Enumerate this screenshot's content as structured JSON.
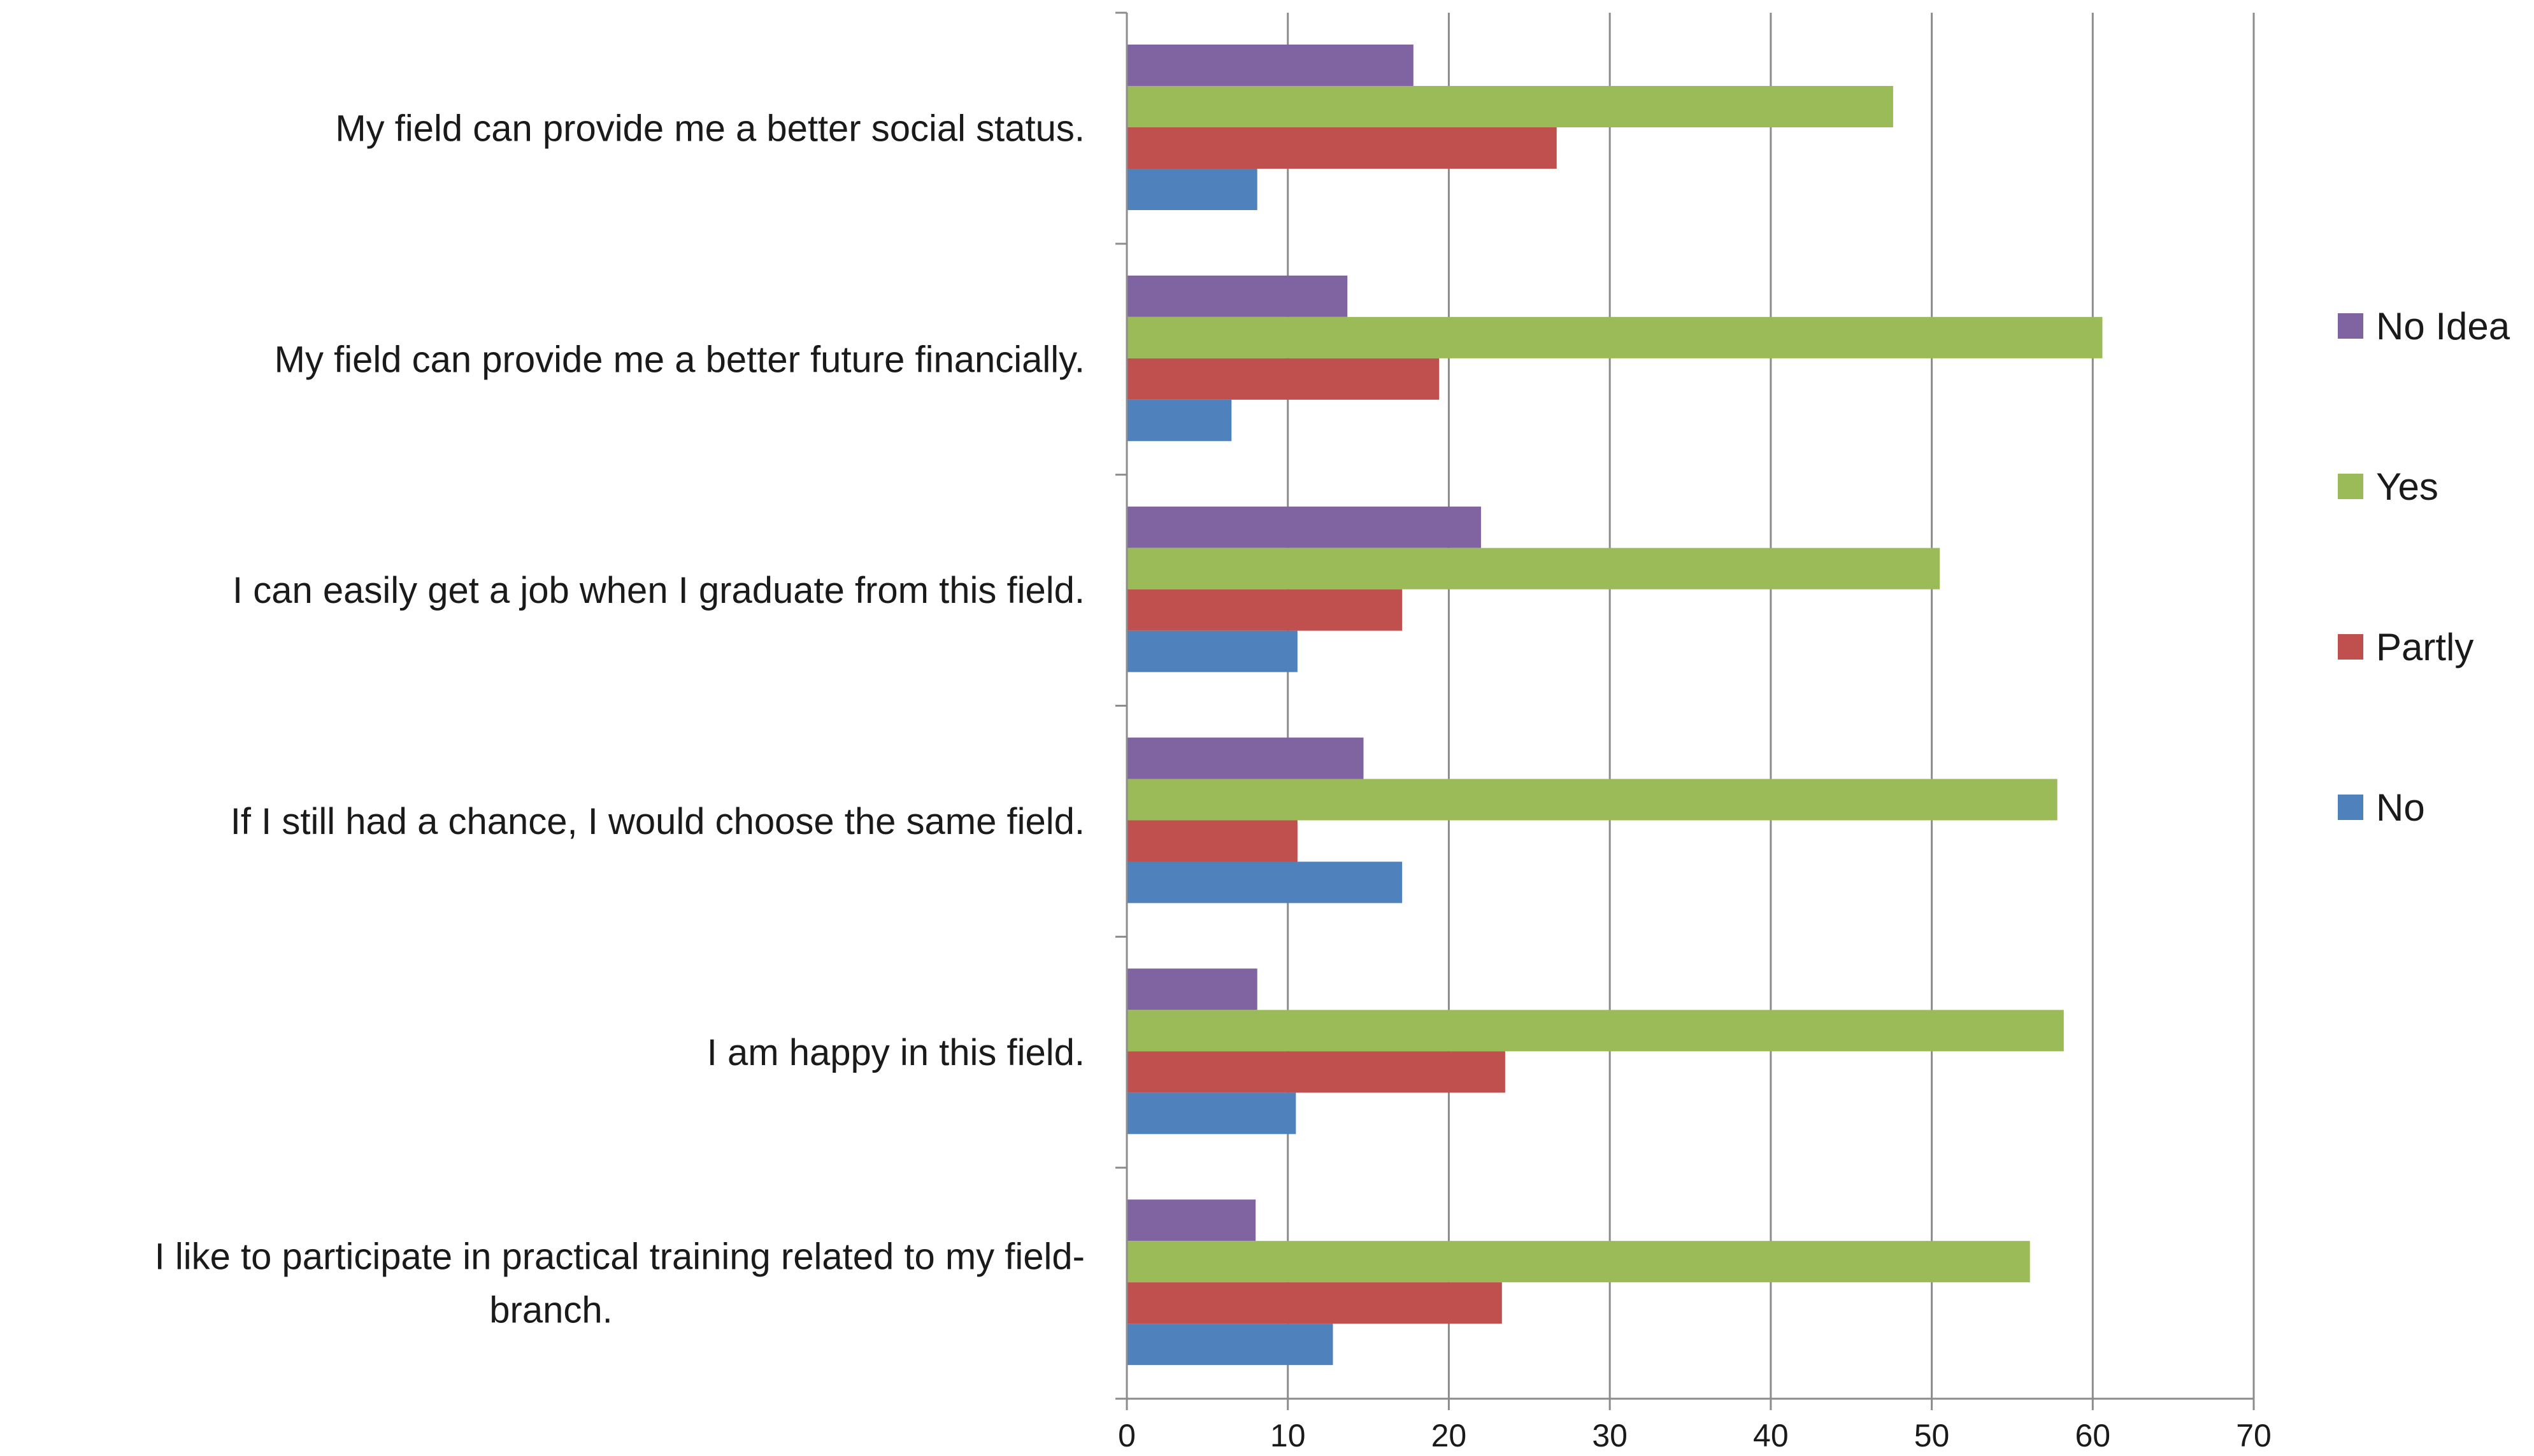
{
  "chart_data": {
    "type": "bar",
    "orientation": "horizontal",
    "categories": [
      "My field can provide me a better social status.",
      "My field can provide me a better future financially.",
      "I can easily get a job when I graduate from this field.",
      "If I still had a chance, I would choose the same field.",
      "I am happy in this field.",
      "I like to participate in practical training related to my field-branch."
    ],
    "category_label_lines": [
      [
        "My field can provide me a better social status."
      ],
      [
        "My field can provide me a better future financially."
      ],
      [
        "I can easily get a job when I graduate from this field."
      ],
      [
        "If I still had a chance, I would choose the same field."
      ],
      [
        "I am happy in this field."
      ],
      [
        "I like to participate in practical training related to my field-",
        "branch."
      ]
    ],
    "series": [
      {
        "name": "No Idea",
        "color": "#8064A2",
        "values": [
          17.8,
          13.7,
          22.0,
          14.7,
          8.1,
          8.0
        ]
      },
      {
        "name": "Yes",
        "color": "#9BBB59",
        "values": [
          47.6,
          60.6,
          50.5,
          57.8,
          58.2,
          56.1
        ]
      },
      {
        "name": "Partly",
        "color": "#C0504D",
        "values": [
          26.7,
          19.4,
          17.1,
          10.6,
          23.5,
          23.3
        ]
      },
      {
        "name": "No",
        "color": "#4F81BD",
        "values": [
          8.1,
          6.5,
          10.6,
          17.1,
          10.5,
          12.8
        ]
      }
    ],
    "xlim": [
      0,
      70
    ],
    "xticks": [
      "0",
      "10",
      "20",
      "30",
      "40",
      "50",
      "60",
      "70"
    ],
    "xlabel": "",
    "ylabel": "",
    "title": "",
    "grid": true,
    "legend_position": "right",
    "legend_order": [
      "No Idea",
      "Yes",
      "Partly",
      "No"
    ]
  }
}
